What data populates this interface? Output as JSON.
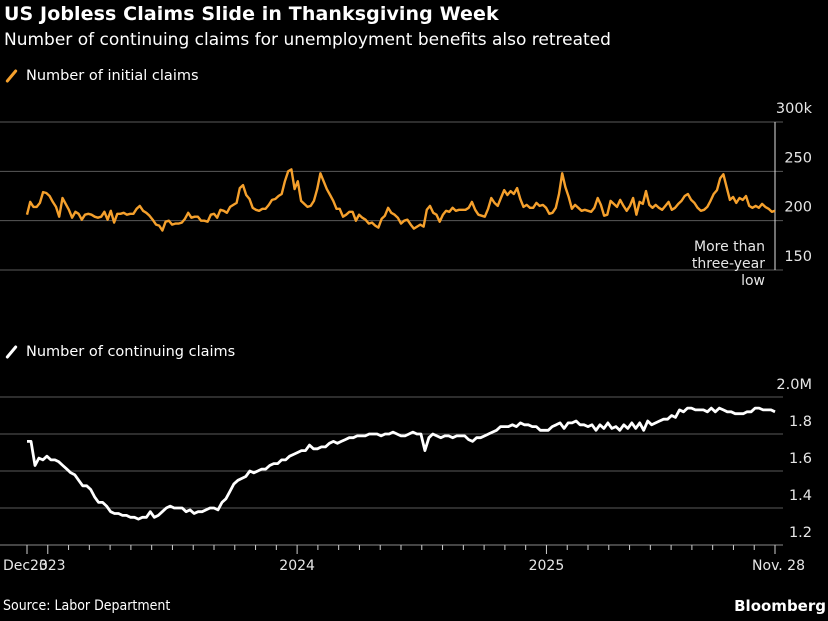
{
  "header": {
    "title": "US Jobless Claims Slide in Thanksgiving Week",
    "subtitle": "Number of continuing claims for unemployment benefits also retreated"
  },
  "footer": {
    "source": "Source: Labor Department",
    "brand": "Bloomberg"
  },
  "colors": {
    "background": "#000000",
    "initial_claims": "#f5a02c",
    "continuing_claims": "#ffffff",
    "gridline": "#555555"
  },
  "chart_data": [
    {
      "type": "line",
      "legend": "Number of initial claims",
      "legend_icon": "orange-slash-icon",
      "unit": "thousands",
      "ylim": [
        150,
        300
      ],
      "yticks": [
        150,
        200,
        250,
        300
      ],
      "ytick_labels": [
        "150",
        "200",
        "250",
        "300k"
      ],
      "grid": true,
      "legend_position": "top-left",
      "annotation": "More than three-year low",
      "x_range": [
        "2022-12-03",
        "2025-11-28"
      ],
      "series": [
        {
          "name": "Number of initial claims",
          "values": [
            206,
            219,
            214,
            214,
            218,
            229,
            228,
            225,
            219,
            214,
            204,
            223,
            217,
            211,
            203,
            209,
            207,
            201,
            206,
            207,
            206,
            204,
            203,
            204,
            209,
            201,
            210,
            198,
            207,
            207,
            208,
            206,
            207,
            207,
            212,
            215,
            210,
            208,
            205,
            201,
            196,
            195,
            190,
            199,
            200,
            196,
            197,
            197,
            198,
            202,
            208,
            203,
            204,
            204,
            200,
            200,
            199,
            206,
            207,
            203,
            211,
            210,
            208,
            214,
            216,
            218,
            233,
            236,
            226,
            222,
            213,
            211,
            210,
            212,
            212,
            216,
            221,
            222,
            225,
            227,
            240,
            250,
            252,
            232,
            240,
            220,
            217,
            214,
            215,
            220,
            232,
            248,
            240,
            232,
            226,
            220,
            212,
            212,
            204,
            206,
            209,
            209,
            200,
            206,
            203,
            201,
            197,
            198,
            195,
            193,
            202,
            205,
            213,
            208,
            206,
            203,
            197,
            200,
            201,
            196,
            192,
            194,
            196,
            194,
            211,
            215,
            208,
            206,
            199,
            206,
            210,
            209,
            213,
            210,
            211,
            211,
            211,
            213,
            219,
            211,
            206,
            205,
            204,
            212,
            223,
            218,
            215,
            223,
            231,
            226,
            230,
            227,
            233,
            222,
            214,
            216,
            213,
            213,
            218,
            215,
            216,
            213,
            207,
            208,
            213,
            227,
            248,
            234,
            224,
            212,
            216,
            213,
            210,
            211,
            210,
            209,
            213,
            223,
            216,
            205,
            206,
            220,
            217,
            214,
            221,
            215,
            210,
            215,
            223,
            206,
            219,
            217,
            230,
            216,
            213,
            216,
            213,
            211,
            215,
            219,
            211,
            213,
            217,
            220,
            225,
            227,
            221,
            218,
            213,
            210,
            211,
            214,
            220,
            227,
            231,
            243,
            247,
            234,
            221,
            224,
            218,
            223,
            221,
            225,
            215,
            213,
            215,
            213,
            217,
            214,
            212,
            209,
            210
          ]
        }
      ]
    },
    {
      "type": "line",
      "legend": "Number of continuing claims",
      "legend_icon": "white-slash-icon",
      "unit": "millions",
      "ylim": [
        1.2,
        2.0
      ],
      "yticks": [
        1.2,
        1.4,
        1.6,
        1.8,
        2.0
      ],
      "ytick_labels": [
        "1.2",
        "1.4",
        "1.6",
        "1.8",
        "2.0M"
      ],
      "grid": true,
      "legend_position": "top-left",
      "x_range": [
        "2022-12-03",
        "2025-11-28"
      ],
      "xtick_labels": [
        "Dec. 3",
        "2023",
        "2024",
        "2025",
        "Nov. 28"
      ],
      "series": [
        {
          "name": "Number of continuing claims",
          "values": [
            1.76,
            1.76,
            1.63,
            1.67,
            1.66,
            1.68,
            1.66,
            1.66,
            1.65,
            1.63,
            1.61,
            1.59,
            1.58,
            1.55,
            1.52,
            1.52,
            1.5,
            1.46,
            1.43,
            1.43,
            1.41,
            1.38,
            1.37,
            1.37,
            1.36,
            1.36,
            1.35,
            1.35,
            1.34,
            1.35,
            1.35,
            1.38,
            1.35,
            1.36,
            1.38,
            1.4,
            1.41,
            1.4,
            1.4,
            1.4,
            1.38,
            1.39,
            1.37,
            1.38,
            1.38,
            1.39,
            1.4,
            1.4,
            1.39,
            1.43,
            1.45,
            1.49,
            1.53,
            1.55,
            1.56,
            1.57,
            1.6,
            1.59,
            1.6,
            1.61,
            1.61,
            1.63,
            1.64,
            1.64,
            1.66,
            1.66,
            1.68,
            1.69,
            1.7,
            1.71,
            1.71,
            1.74,
            1.72,
            1.72,
            1.73,
            1.73,
            1.75,
            1.76,
            1.75,
            1.76,
            1.77,
            1.78,
            1.78,
            1.79,
            1.79,
            1.79,
            1.8,
            1.8,
            1.8,
            1.79,
            1.8,
            1.8,
            1.81,
            1.8,
            1.79,
            1.79,
            1.8,
            1.81,
            1.8,
            1.8,
            1.71,
            1.78,
            1.8,
            1.79,
            1.78,
            1.79,
            1.79,
            1.78,
            1.79,
            1.79,
            1.79,
            1.77,
            1.76,
            1.78,
            1.78,
            1.79,
            1.8,
            1.81,
            1.82,
            1.84,
            1.84,
            1.84,
            1.85,
            1.84,
            1.86,
            1.85,
            1.85,
            1.84,
            1.84,
            1.82,
            1.82,
            1.82,
            1.84,
            1.85,
            1.86,
            1.83,
            1.86,
            1.86,
            1.87,
            1.85,
            1.85,
            1.84,
            1.85,
            1.82,
            1.85,
            1.83,
            1.86,
            1.83,
            1.84,
            1.82,
            1.85,
            1.83,
            1.86,
            1.83,
            1.86,
            1.82,
            1.87,
            1.85,
            1.86,
            1.87,
            1.88,
            1.88,
            1.9,
            1.89,
            1.93,
            1.92,
            1.94,
            1.94,
            1.93,
            1.93,
            1.93,
            1.92,
            1.94,
            1.92,
            1.94,
            1.93,
            1.92,
            1.92,
            1.91,
            1.91,
            1.91,
            1.92,
            1.92,
            1.94,
            1.94,
            1.93,
            1.93,
            1.93,
            1.92
          ]
        }
      ]
    }
  ]
}
